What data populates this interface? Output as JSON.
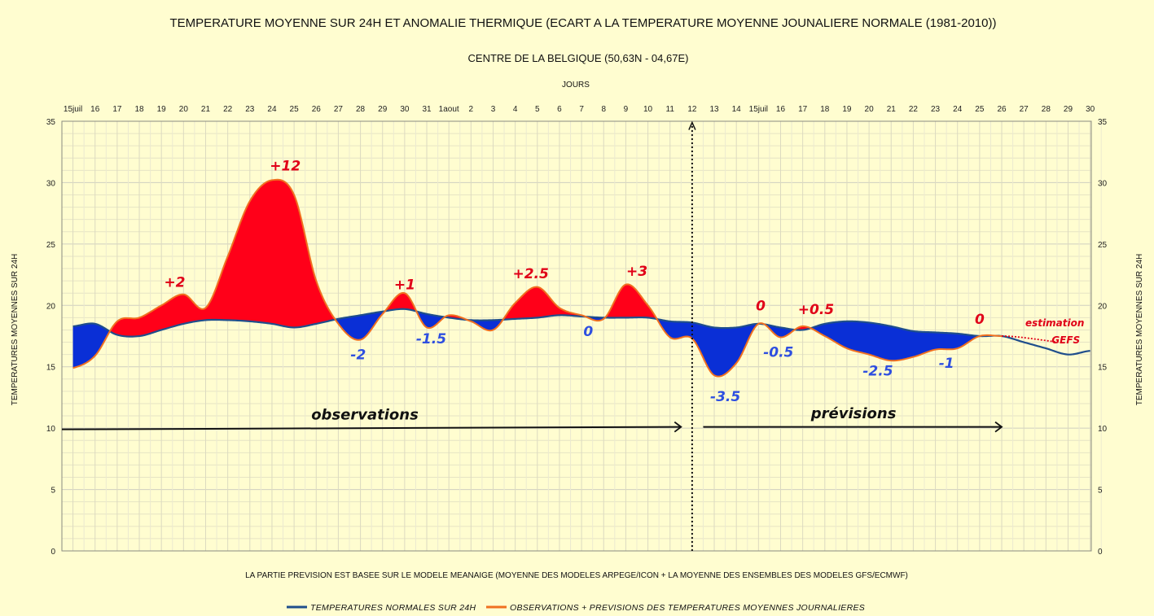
{
  "chart_data": {
    "type": "area",
    "title": "TEMPERATURE MOYENNE SUR 24H ET  ANOMALIE THERMIQUE (ECART A LA TEMPERATURE MOYENNE JOUNALIERE NORMALE (1981-2010))",
    "subtitle": "CENTRE DE LA BELGIQUE (50,63N - 04,67E)",
    "xlabel": "JOURS",
    "ylabel": "TEMPERATURES MOYENNES SUR 24H",
    "ylim": [
      0,
      35
    ],
    "yticks": [
      0,
      5,
      10,
      15,
      20,
      25,
      30,
      35
    ],
    "grid": true,
    "x_tick_labels": [
      "15juil",
      "16",
      "17",
      "18",
      "19",
      "20",
      "21",
      "22",
      "23",
      "24",
      "25",
      "26",
      "27",
      "28",
      "29",
      "30",
      "31",
      "1aout",
      "2",
      "3",
      "4",
      "5",
      "6",
      "7",
      "8",
      "9",
      "10",
      "11",
      "12",
      "13",
      "14",
      "15juil",
      "16",
      "17",
      "18",
      "19",
      "20",
      "21",
      "22",
      "23",
      "24",
      "25",
      "26",
      "27",
      "28",
      "29",
      "30"
    ],
    "series": [
      {
        "name": "TEMPERATURES NORMALES SUR 24H",
        "color": "#1f4e8c",
        "values": [
          18.3,
          18.5,
          17.6,
          17.5,
          18.0,
          18.5,
          18.8,
          18.8,
          18.7,
          18.5,
          18.2,
          18.5,
          18.9,
          19.2,
          19.5,
          19.7,
          19.3,
          19.0,
          18.8,
          18.8,
          18.9,
          19.0,
          19.2,
          19.1,
          19.0,
          19.0,
          19.0,
          18.7,
          18.6,
          18.2,
          18.2,
          18.5,
          18.2,
          18.0,
          18.5,
          18.7,
          18.6,
          18.3,
          17.9,
          17.8,
          17.7,
          17.5,
          17.5,
          17.0,
          16.5,
          16.0,
          16.3
        ]
      },
      {
        "name": "OBSERVATIONS + PREVISIONS DES TEMPERATURES MOYENNES JOURNALIERES",
        "color": "#f07020",
        "values": [
          14.9,
          15.9,
          18.7,
          19.0,
          20.0,
          20.9,
          19.8,
          24.0,
          28.5,
          30.2,
          29.0,
          22.0,
          18.5,
          17.2,
          19.3,
          21.0,
          18.2,
          19.2,
          18.7,
          18.0,
          20.2,
          21.5,
          19.8,
          19.2,
          18.9,
          21.7,
          20.0,
          17.4,
          17.3,
          14.3,
          15.3,
          18.5,
          17.4,
          18.3,
          17.5,
          16.5,
          16.0,
          15.5,
          15.8,
          16.4,
          16.5,
          17.5,
          17.5
        ]
      }
    ],
    "anomalies": [
      {
        "text": "+2",
        "x": 4.6,
        "y": 21.5
      },
      {
        "text": "+12",
        "x": 9.6,
        "y": 31.0
      },
      {
        "text": "-2",
        "x": 12.9,
        "y": 15.6
      },
      {
        "text": "+1",
        "x": 15.0,
        "y": 21.3
      },
      {
        "text": "-1.5",
        "x": 16.2,
        "y": 16.9
      },
      {
        "text": "+2.5",
        "x": 20.7,
        "y": 22.2
      },
      {
        "text": "0",
        "x": 23.3,
        "y": 17.5
      },
      {
        "text": "+3",
        "x": 25.5,
        "y": 22.4
      },
      {
        "text": "-3.5",
        "x": 29.5,
        "y": 12.2
      },
      {
        "text": "0",
        "x": 31.1,
        "y": 19.6
      },
      {
        "text": "-0.5",
        "x": 31.9,
        "y": 15.8
      },
      {
        "text": "+0.5",
        "x": 33.6,
        "y": 19.3
      },
      {
        "text": "-2.5",
        "x": 36.4,
        "y": 14.3
      },
      {
        "text": "-1",
        "x": 39.5,
        "y": 14.9
      },
      {
        "text": "0",
        "x": 41.0,
        "y": 18.5
      }
    ],
    "annotations": {
      "observations": "observations",
      "previsions": "prévisions",
      "estimation": "estimation",
      "gefs": "GEFS",
      "note": "LA PARTIE PREVISION EST BASEE SUR LE  MODELE MEANAIGE (MOYENNE DES MODELES  ARPEGE/ICON + LA MOYENNE DES ENSEMBLES DES MODELES GFS/ECMWF)"
    },
    "legend_position": "bottom"
  }
}
